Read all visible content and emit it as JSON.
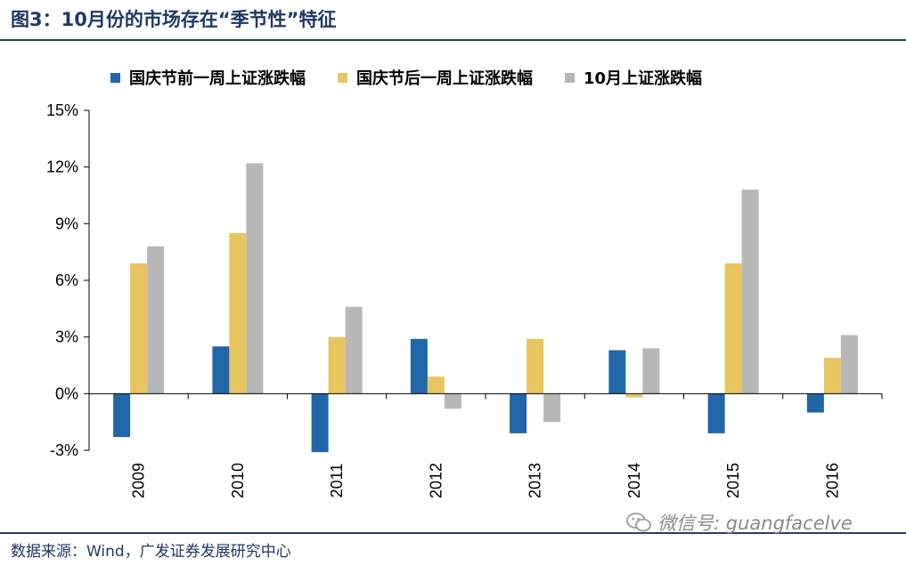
{
  "title": "图3：10月份的市场存在“季节性”特征",
  "source": "数据来源：Wind，广发证券发展研究中心",
  "watermark": "微信号: guangfacelve",
  "colors": {
    "pre": "#2066a8",
    "post": "#e8c55e",
    "october": "#b7b7b7",
    "title": "#1f3864"
  },
  "chart_data": {
    "type": "bar",
    "categories": [
      "2009",
      "2010",
      "2011",
      "2012",
      "2013",
      "2014",
      "2015",
      "2016"
    ],
    "series": [
      {
        "name": "国庆节前一周上证涨跌幅",
        "values": [
          -2.3,
          2.5,
          -3.1,
          2.9,
          -2.1,
          2.3,
          -2.1,
          -1.0
        ]
      },
      {
        "name": "国庆节后一周上证涨跌幅",
        "values": [
          6.9,
          8.5,
          3.0,
          0.9,
          2.9,
          -0.2,
          6.9,
          1.9
        ]
      },
      {
        "name": "10月上证涨跌幅",
        "values": [
          7.8,
          12.2,
          4.6,
          -0.8,
          -1.5,
          2.4,
          10.8,
          3.1
        ]
      }
    ],
    "ylim": [
      -3,
      15
    ],
    "yticks": [
      -3,
      0,
      3,
      6,
      9,
      12,
      15
    ],
    "ytick_labels": [
      "-3%",
      "0%",
      "3%",
      "6%",
      "9%",
      "12%",
      "15%"
    ],
    "xlabel": "",
    "ylabel": "",
    "legend_position": "top",
    "grid": false
  }
}
